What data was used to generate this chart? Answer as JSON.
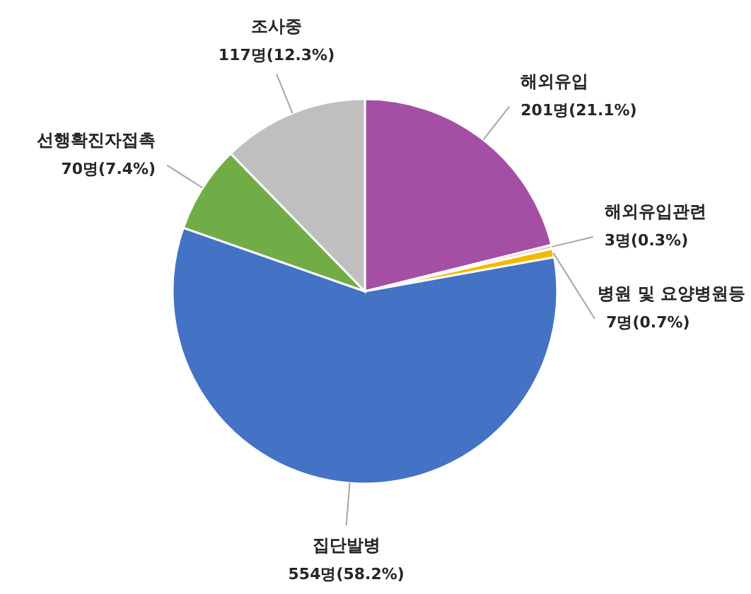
{
  "chart_data": {
    "type": "pie",
    "categories": [
      "해외유입",
      "해외유입관련",
      "병원 및 요양병원등",
      "집단발병",
      "선행확진자접촉",
      "조사중"
    ],
    "values": [
      201,
      3,
      7,
      554,
      70,
      117
    ],
    "colors": [
      "#a44ea4",
      "#f4c7c3",
      "#f5b800",
      "#4472c4",
      "#70ad47",
      "#bfbfbf"
    ],
    "value_labels": [
      "201명(21.1%)",
      "3명(0.3%)",
      "7명(0.7%)",
      "554명(58.2%)",
      "70명(7.4%)",
      "117명(12.3%)"
    ]
  }
}
